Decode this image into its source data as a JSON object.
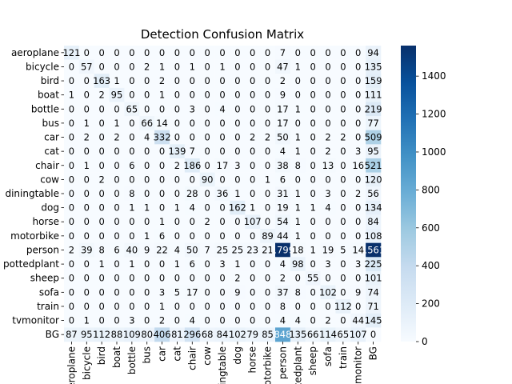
{
  "chart_data": {
    "type": "heatmap",
    "title": "Detection Confusion Matrix",
    "xlabel": "",
    "ylabel": "",
    "labels": [
      "aeroplane",
      "bicycle",
      "bird",
      "boat",
      "bottle",
      "bus",
      "car",
      "cat",
      "chair",
      "cow",
      "diningtable",
      "dog",
      "horse",
      "motorbike",
      "person",
      "pottedplant",
      "sheep",
      "sofa",
      "train",
      "tvmonitor",
      "BG"
    ],
    "matrix": [
      [
        121,
        0,
        0,
        0,
        0,
        0,
        0,
        0,
        0,
        0,
        0,
        0,
        0,
        0,
        7,
        0,
        0,
        0,
        0,
        0,
        94
      ],
      [
        0,
        57,
        0,
        0,
        0,
        2,
        1,
        0,
        1,
        0,
        1,
        0,
        0,
        0,
        47,
        1,
        0,
        0,
        0,
        0,
        135
      ],
      [
        0,
        0,
        163,
        1,
        0,
        0,
        2,
        0,
        0,
        0,
        0,
        0,
        0,
        0,
        2,
        0,
        0,
        0,
        0,
        0,
        159
      ],
      [
        1,
        0,
        2,
        95,
        0,
        0,
        1,
        0,
        0,
        0,
        0,
        0,
        0,
        0,
        9,
        0,
        0,
        0,
        0,
        0,
        111
      ],
      [
        0,
        0,
        0,
        0,
        65,
        0,
        0,
        0,
        3,
        0,
        4,
        0,
        0,
        0,
        17,
        1,
        0,
        0,
        0,
        0,
        219
      ],
      [
        0,
        1,
        0,
        1,
        0,
        66,
        14,
        0,
        0,
        0,
        0,
        0,
        0,
        0,
        17,
        0,
        0,
        0,
        0,
        0,
        77
      ],
      [
        0,
        2,
        0,
        2,
        0,
        4,
        332,
        0,
        0,
        0,
        0,
        0,
        2,
        2,
        50,
        1,
        0,
        2,
        2,
        0,
        509
      ],
      [
        0,
        0,
        0,
        0,
        0,
        0,
        0,
        139,
        7,
        0,
        0,
        0,
        0,
        0,
        4,
        1,
        0,
        2,
        0,
        3,
        95
      ],
      [
        0,
        1,
        0,
        0,
        6,
        0,
        0,
        2,
        186,
        0,
        17,
        3,
        0,
        0,
        38,
        8,
        0,
        13,
        0,
        16,
        521
      ],
      [
        0,
        0,
        2,
        0,
        0,
        0,
        0,
        0,
        0,
        90,
        0,
        0,
        0,
        1,
        6,
        0,
        0,
        0,
        0,
        0,
        120
      ],
      [
        0,
        0,
        0,
        0,
        8,
        0,
        0,
        0,
        28,
        0,
        36,
        1,
        0,
        0,
        31,
        1,
        0,
        3,
        0,
        2,
        56
      ],
      [
        0,
        0,
        0,
        0,
        1,
        1,
        0,
        1,
        4,
        0,
        0,
        162,
        1,
        0,
        19,
        1,
        1,
        4,
        0,
        0,
        134
      ],
      [
        0,
        0,
        0,
        0,
        0,
        0,
        1,
        0,
        0,
        2,
        0,
        0,
        107,
        0,
        54,
        1,
        0,
        0,
        0,
        0,
        84
      ],
      [
        0,
        0,
        0,
        0,
        0,
        1,
        6,
        0,
        0,
        0,
        0,
        0,
        0,
        89,
        44,
        1,
        0,
        0,
        0,
        0,
        108
      ],
      [
        2,
        39,
        8,
        6,
        40,
        9,
        22,
        4,
        50,
        7,
        25,
        25,
        23,
        21,
        1799,
        18,
        1,
        19,
        5,
        14,
        1561
      ],
      [
        0,
        0,
        1,
        0,
        1,
        0,
        0,
        1,
        6,
        0,
        3,
        1,
        0,
        0,
        4,
        98,
        0,
        3,
        0,
        3,
        225
      ],
      [
        0,
        0,
        0,
        0,
        0,
        0,
        0,
        0,
        0,
        0,
        0,
        2,
        0,
        0,
        2,
        0,
        55,
        0,
        0,
        0,
        101
      ],
      [
        0,
        0,
        0,
        0,
        0,
        0,
        3,
        5,
        17,
        0,
        0,
        9,
        0,
        0,
        37,
        8,
        0,
        102,
        0,
        9,
        74
      ],
      [
        0,
        0,
        0,
        0,
        0,
        0,
        1,
        0,
        0,
        0,
        0,
        0,
        0,
        0,
        8,
        0,
        0,
        0,
        112,
        0,
        71
      ],
      [
        0,
        1,
        0,
        0,
        3,
        0,
        2,
        0,
        4,
        0,
        0,
        0,
        0,
        0,
        4,
        4,
        0,
        2,
        0,
        44,
        145
      ],
      [
        87,
        95,
        112,
        88,
        109,
        80,
        406,
        81,
        296,
        68,
        84,
        102,
        79,
        85,
        848,
        135,
        66,
        114,
        65,
        107,
        0
      ]
    ],
    "colorbar": {
      "min": 0,
      "max": 1561,
      "ticks": [
        0,
        200,
        400,
        600,
        800,
        1000,
        1200,
        1400
      ],
      "colormap": "Blues",
      "colors": [
        "#f7fbff",
        "#deebf7",
        "#c6dbef",
        "#9ecae1",
        "#6baed6",
        "#4292c6",
        "#2171b5",
        "#08519c",
        "#08306b"
      ]
    },
    "text_light_color": "#ffffff",
    "text_dark_color": "#000000"
  }
}
